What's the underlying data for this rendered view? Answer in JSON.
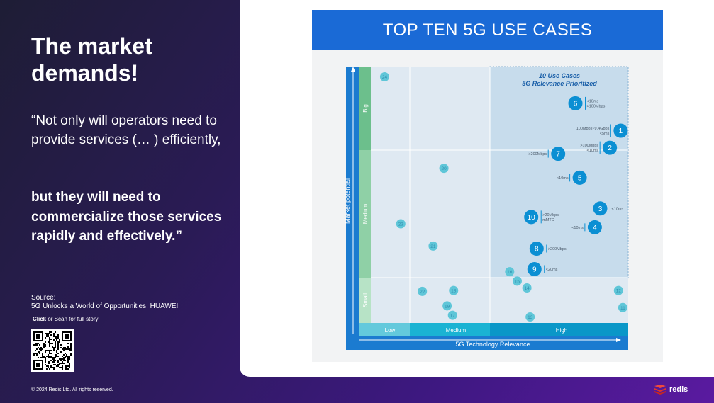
{
  "slide": {
    "headline": "The market demands!",
    "quote_part1": "“Not only will operators need to provide services (… ) efficiently,",
    "quote_part2": "but they will need to commercialize those services rapidly and effectively.”",
    "source_label": "Source:",
    "source_text": "5G Unlocks a World of Opportunities, HUAWEI",
    "cta_link": "Click",
    "cta_rest": " or Scan for full story",
    "copyright": "© 2024 Redis Ltd. All rights reserved.",
    "brand_name": "redis"
  },
  "figure": {
    "title": "TOP TEN 5G USE CASES",
    "y_label": "Market potential",
    "x_label": "5G Technology Relevance",
    "y_levels": [
      "Big",
      "Medium",
      "Small"
    ],
    "x_levels": [
      "Low",
      "Medium",
      "High"
    ],
    "box_title_1": "10 Use Cases",
    "box_title_2": "5G Relevance Prioritized"
  },
  "colors": {
    "banner": "#1a6ad6",
    "accent_blue": "#0b8fd3",
    "faded_teal": "#5fc6d8"
  },
  "chart_data": {
    "type": "scatter",
    "title": "TOP TEN 5G USE CASES",
    "xlabel": "5G Technology Relevance",
    "ylabel": "Market potential",
    "x_categories": [
      "Low",
      "Medium",
      "High"
    ],
    "y_categories": [
      "Small",
      "Medium",
      "Big"
    ],
    "top_ten": [
      {
        "id": "1",
        "x": 2.93,
        "y": 2.25,
        "annotation": [
          "100Mbps~9.4Gbps",
          "<5ms"
        ]
      },
      {
        "id": "2",
        "x": 2.83,
        "y": 2.05,
        "annotation": [
          ">100Mbps",
          "<10ms"
        ]
      },
      {
        "id": "3",
        "x": 2.74,
        "y": 1.34,
        "annotation": [
          "<10ms"
        ]
      },
      {
        "id": "4",
        "x": 2.69,
        "y": 1.12,
        "annotation": [
          "<10ms"
        ]
      },
      {
        "id": "5",
        "x": 2.55,
        "y": 1.7,
        "annotation": [
          "<10ms"
        ]
      },
      {
        "id": "6",
        "x": 2.51,
        "y": 2.57,
        "annotation": [
          "<10ms",
          ">100Mbps"
        ]
      },
      {
        "id": "7",
        "x": 2.35,
        "y": 1.98,
        "annotation": [
          ">200Mbps"
        ]
      },
      {
        "id": "8",
        "x": 2.15,
        "y": 0.87,
        "annotation": [
          ">200Mbps"
        ]
      },
      {
        "id": "9",
        "x": 2.13,
        "y": 0.63,
        "annotation": [
          "<20ms"
        ]
      },
      {
        "id": "10",
        "x": 2.1,
        "y": 1.24,
        "annotation": [
          ">20Mbps",
          "mMTC"
        ]
      }
    ],
    "other_cases": [
      {
        "id": "11",
        "x": 2.95,
        "y": 0.18
      },
      {
        "id": "12",
        "x": 2.91,
        "y": 0.38
      },
      {
        "id": "13",
        "x": 2.09,
        "y": 0.07
      },
      {
        "id": "14",
        "x": 2.06,
        "y": 0.41
      },
      {
        "id": "15",
        "x": 1.97,
        "y": 0.49
      },
      {
        "id": "16",
        "x": 1.9,
        "y": 0.6
      },
      {
        "id": "17",
        "x": 1.37,
        "y": 0.09
      },
      {
        "id": "18",
        "x": 1.38,
        "y": 0.38
      },
      {
        "id": "19",
        "x": 1.32,
        "y": 0.2
      },
      {
        "id": "20",
        "x": 1.29,
        "y": 1.81
      },
      {
        "id": "21",
        "x": 1.19,
        "y": 0.9
      },
      {
        "id": "22",
        "x": 1.09,
        "y": 0.37
      },
      {
        "id": "23",
        "x": 0.89,
        "y": 1.16
      },
      {
        "id": "24",
        "x": 0.74,
        "y": 2.88
      }
    ],
    "xlim": [
      0.5,
      3.0
    ],
    "ylim": [
      0,
      3
    ],
    "grid": true
  }
}
